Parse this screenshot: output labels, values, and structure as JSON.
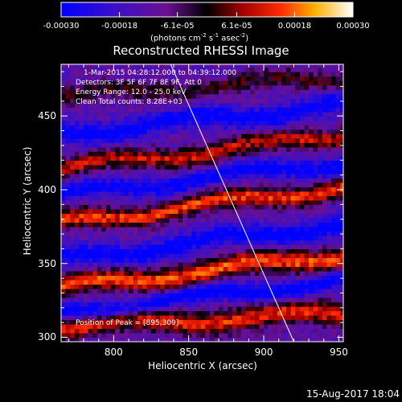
{
  "colorbar": {
    "tick_labels": [
      "-0.00030",
      "-0.00018",
      "-6.1e-05",
      "6.1e-05",
      "0.00018",
      "0.00030"
    ],
    "tick_values": [
      -0.0003,
      -0.00018,
      -6.1e-05,
      6.1e-05,
      0.00018,
      0.0003
    ],
    "units_text": "(photons cm",
    "units_exp1": "-2",
    "units_mid": " s",
    "units_exp2": "-1",
    "units_end": " asec",
    "units_exp3": "-2",
    "units_close": ")"
  },
  "annotations": {
    "time_range": "1-Mar-2015 04:28:12.000 to 04:39:12.000",
    "detectors": "Detectors: 3F 5F 6F 7F 8F 9F, Att 0",
    "energy_range": "Energy Range: 12.0 - 25.0 keV",
    "clean_counts": "Clean     Total counts: 8.28E+03",
    "peak_position": "Position of Peak = [895,309]"
  },
  "footer": {
    "date": "15-Aug-2017 18:04"
  },
  "colors": {
    "background": "#000000",
    "text": "#ffffff"
  },
  "chart_data": {
    "type": "heatmap",
    "title": "Reconstructed RHESSI Image",
    "xlabel": "Heliocentric X (arcsec)",
    "ylabel": "Heliocentric Y (arcsec)",
    "xlim": [
      765,
      953
    ],
    "ylim": [
      297,
      485
    ],
    "xticks": [
      800,
      850,
      900,
      950
    ],
    "yticks": [
      300,
      350,
      400,
      450
    ],
    "colormap": "RHESSI blue-purple-black-red-yellow-white",
    "color_range": [
      -0.0003,
      0.0003
    ],
    "limb_line": {
      "x": [
        838,
        920
      ],
      "y": [
        485,
        297
      ]
    },
    "peak": {
      "x": 895,
      "y": 309
    },
    "bands": [
      {
        "y_center": 312,
        "slope": 0.05,
        "amplitude": 0.85,
        "width": 7
      },
      {
        "y_center": 345,
        "slope": 0.12,
        "amplitude": 0.95,
        "width": 7
      },
      {
        "y_center": 390,
        "slope": 0.13,
        "amplitude": 0.9,
        "width": 6
      },
      {
        "y_center": 426,
        "slope": 0.12,
        "amplitude": 0.75,
        "width": 6
      },
      {
        "y_center": 470,
        "slope": 0.07,
        "amplitude": 0.45,
        "width": 6
      }
    ],
    "troughs": [
      {
        "y_center": 328,
        "slope": 0.12,
        "amplitude": -0.7,
        "width": 6
      },
      {
        "y_center": 365,
        "slope": 0.13,
        "amplitude": -0.65,
        "width": 7
      },
      {
        "y_center": 408,
        "slope": 0.12,
        "amplitude": -0.6,
        "width": 6
      },
      {
        "y_center": 448,
        "slope": 0.1,
        "amplitude": -0.65,
        "width": 7
      }
    ]
  }
}
